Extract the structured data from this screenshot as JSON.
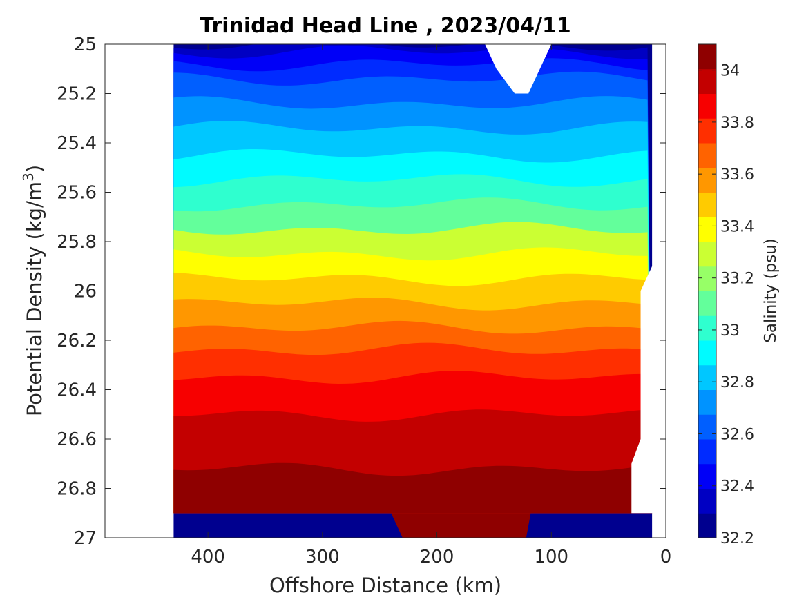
{
  "chart_data": {
    "type": "contour",
    "title": "Trinidad Head Line , 2023/04/11",
    "xlabel": "Offshore Distance (km)",
    "ylabel_main": "Potential Density (kg/m",
    "ylabel_sup": "3",
    "ylabel_end": ")",
    "colorbar_label": "Salinity (psu)",
    "x_reversed": true,
    "y_reversed": true,
    "xlim": [
      490,
      0
    ],
    "ylim": [
      25,
      27
    ],
    "xticks": [
      400,
      300,
      200,
      100,
      0
    ],
    "yticks": [
      25,
      25.2,
      25.4,
      25.6,
      25.8,
      26,
      26.2,
      26.4,
      26.6,
      26.8,
      27
    ],
    "colorbar_range": [
      32.2,
      34.1
    ],
    "colorbar_ticks": [
      32.2,
      32.4,
      32.6,
      32.8,
      33,
      33.2,
      33.4,
      33.6,
      33.8,
      34
    ],
    "contour_levels": [
      32.3,
      32.4,
      32.5,
      32.6,
      32.7,
      32.8,
      32.9,
      33.0,
      33.1,
      33.2,
      33.3,
      33.4,
      33.5,
      33.6,
      33.7,
      33.8,
      33.9,
      34.0
    ],
    "colormap": [
      "#00008f",
      "#0000c3",
      "#0000f7",
      "#002bff",
      "#005fff",
      "#0093ff",
      "#00c7ff",
      "#00fbff",
      "#2fffcf",
      "#63ff9b",
      "#97ff67",
      "#cbff33",
      "#ffff00",
      "#ffcb00",
      "#ff9700",
      "#ff6300",
      "#ff2f00",
      "#f70000",
      "#c30000",
      "#8f0000"
    ],
    "approx_level_depths": {
      "32.3": 25.0,
      "32.4": 25.03,
      "32.5": 25.08,
      "32.6": 25.14,
      "32.7": 25.24,
      "32.8": 25.34,
      "32.9": 25.45,
      "33.0": 25.55,
      "33.1": 25.65,
      "33.2": 25.75,
      "33.3": 25.85,
      "33.4": 25.95,
      "33.5": 26.05,
      "33.6": 26.15,
      "33.7": 26.24,
      "33.8": 26.35,
      "33.9": 26.5,
      "34.0": 26.72
    }
  }
}
